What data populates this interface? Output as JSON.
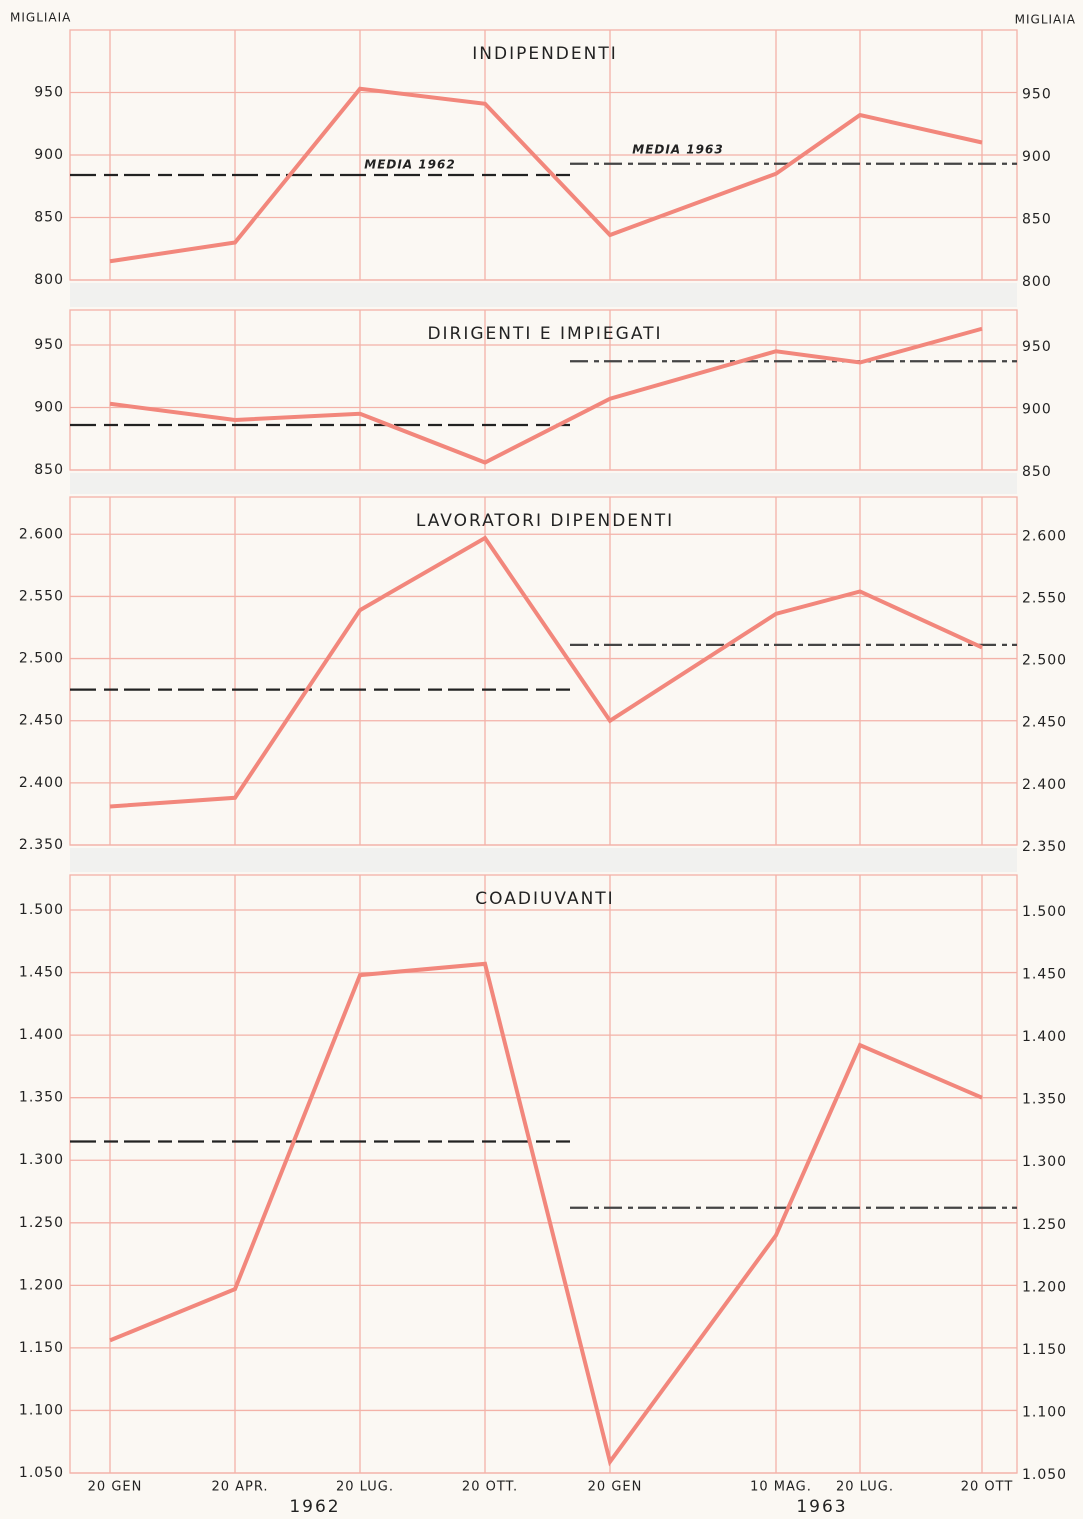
{
  "axis_label": "MIGLIAIA",
  "years": [
    "1962",
    "1963"
  ],
  "chart_data": [
    {
      "type": "line",
      "title": "INDIPENDENTI",
      "color": "#f2877c",
      "values": [
        815,
        830,
        953,
        941,
        836,
        885,
        932,
        910
      ],
      "averages": [
        884,
        893
      ],
      "average_labels": [
        "MEDIA 1962",
        "MEDIA 1963"
      ],
      "ylim": [
        800,
        1000
      ],
      "yticks": [
        800,
        850,
        900,
        950
      ],
      "grid": true
    },
    {
      "type": "line",
      "title": "DIRIGENTI E IMPIEGATI",
      "color": "#f2877c",
      "values": [
        903,
        890,
        895,
        856,
        907,
        945,
        936,
        963
      ],
      "averages": [
        886,
        937
      ],
      "ylim": [
        850,
        978
      ],
      "yticks": [
        850,
        900,
        950
      ],
      "grid": true
    },
    {
      "type": "line",
      "title": "LAVORATORI DIPENDENTI",
      "color": "#f2877c",
      "values": [
        2381,
        2388,
        2539,
        2597,
        2450,
        2536,
        2554,
        2509
      ],
      "averages": [
        2475,
        2511
      ],
      "ylim": [
        2350,
        2630
      ],
      "yticks": [
        {
          "value": 2350,
          "label": "2.350"
        },
        {
          "value": 2400,
          "label": "2.400"
        },
        {
          "value": 2450,
          "label": "2.450"
        },
        {
          "value": 2500,
          "label": "2.500"
        },
        {
          "value": 2550,
          "label": "2.550"
        },
        {
          "value": 2600,
          "label": "2.600"
        }
      ],
      "grid": true
    },
    {
      "type": "line",
      "title": "COADIUVANTI",
      "color": "#f2877c",
      "categories": [
        "20 GEN",
        "20 APR.",
        "20 LUG.",
        "20 OTT.",
        "20 GEN",
        "10 MAG.",
        "20 LUG.",
        "20 OTT"
      ],
      "values": [
        1156,
        1197,
        1448,
        1457,
        1059,
        1240,
        1392,
        1350
      ],
      "averages": [
        1315,
        1262
      ],
      "ylim": [
        1050,
        1528
      ],
      "yticks": [
        {
          "value": 1050,
          "label": "1.050"
        },
        {
          "value": 1100,
          "label": "1.100"
        },
        {
          "value": 1150,
          "label": "1.150"
        },
        {
          "value": 1200,
          "label": "1.200"
        },
        {
          "value": 1250,
          "label": "1.250"
        },
        {
          "value": 1300,
          "label": "1.300"
        },
        {
          "value": 1350,
          "label": "1.350"
        },
        {
          "value": 1400,
          "label": "1.400"
        },
        {
          "value": 1450,
          "label": "1.450"
        },
        {
          "value": 1500,
          "label": "1.500"
        }
      ],
      "grid": true
    }
  ]
}
